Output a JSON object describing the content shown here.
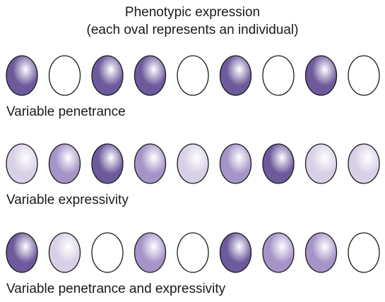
{
  "title": {
    "line1": "Phenotypic expression",
    "line2": "(each oval represents an individual)"
  },
  "shade_colors": {
    "none": "#ffffff",
    "light": "#d8d0e6",
    "medium": "#a594c8",
    "dark": "#6d5a9c"
  },
  "rows": [
    {
      "label": "Variable penetrance",
      "ovals": [
        "dark",
        "none",
        "dark",
        "dark",
        "none",
        "dark",
        "none",
        "dark",
        "none"
      ]
    },
    {
      "label": "Variable expressivity",
      "ovals": [
        "light",
        "medium",
        "dark",
        "medium",
        "light",
        "medium",
        "dark",
        "light",
        "light"
      ]
    },
    {
      "label": "Variable penetrance and expressivity",
      "ovals": [
        "dark",
        "light",
        "none",
        "medium",
        "none",
        "dark",
        "medium",
        "medium",
        "none"
      ]
    }
  ]
}
